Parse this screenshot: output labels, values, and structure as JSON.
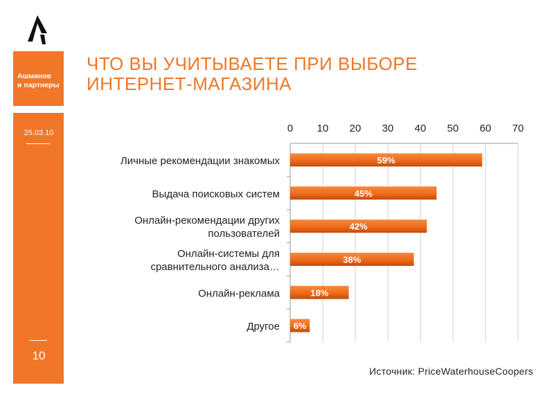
{
  "brand": {
    "line1": "Ашманов",
    "line2": "и партнеры"
  },
  "date": "25.03.10",
  "page_number": "10",
  "title": {
    "line1": "ЧТО ВЫ УЧИТЫВАЕТЕ ПРИ ВЫБОРЕ",
    "line2": "ИНТЕРНЕТ-МАГАЗИНА"
  },
  "source": "Источник: PriceWaterhouseCoopers",
  "colors": {
    "accent": "#f07628",
    "bar": "#f06a1a",
    "bar_dark": "#c24d0a"
  },
  "chart_data": {
    "type": "bar",
    "orientation": "horizontal",
    "categories": [
      [
        "Личные рекомендации знакомых"
      ],
      [
        "Выдача поисковых систем"
      ],
      [
        "Онлайн-рекомендации других",
        "пользователей"
      ],
      [
        "Онлайн-системы для",
        "сравнительного анализа…"
      ],
      [
        "Онлайн-реклама"
      ],
      [
        "Другое"
      ]
    ],
    "values": [
      59,
      45,
      42,
      38,
      18,
      6
    ],
    "data_labels": [
      "59%",
      "45%",
      "42%",
      "38%",
      "18%",
      "6%"
    ],
    "xlim": [
      0,
      70
    ],
    "ticks": [
      0,
      10,
      20,
      30,
      40,
      50,
      60,
      70
    ],
    "xaxis_position": "top",
    "grid": true
  }
}
